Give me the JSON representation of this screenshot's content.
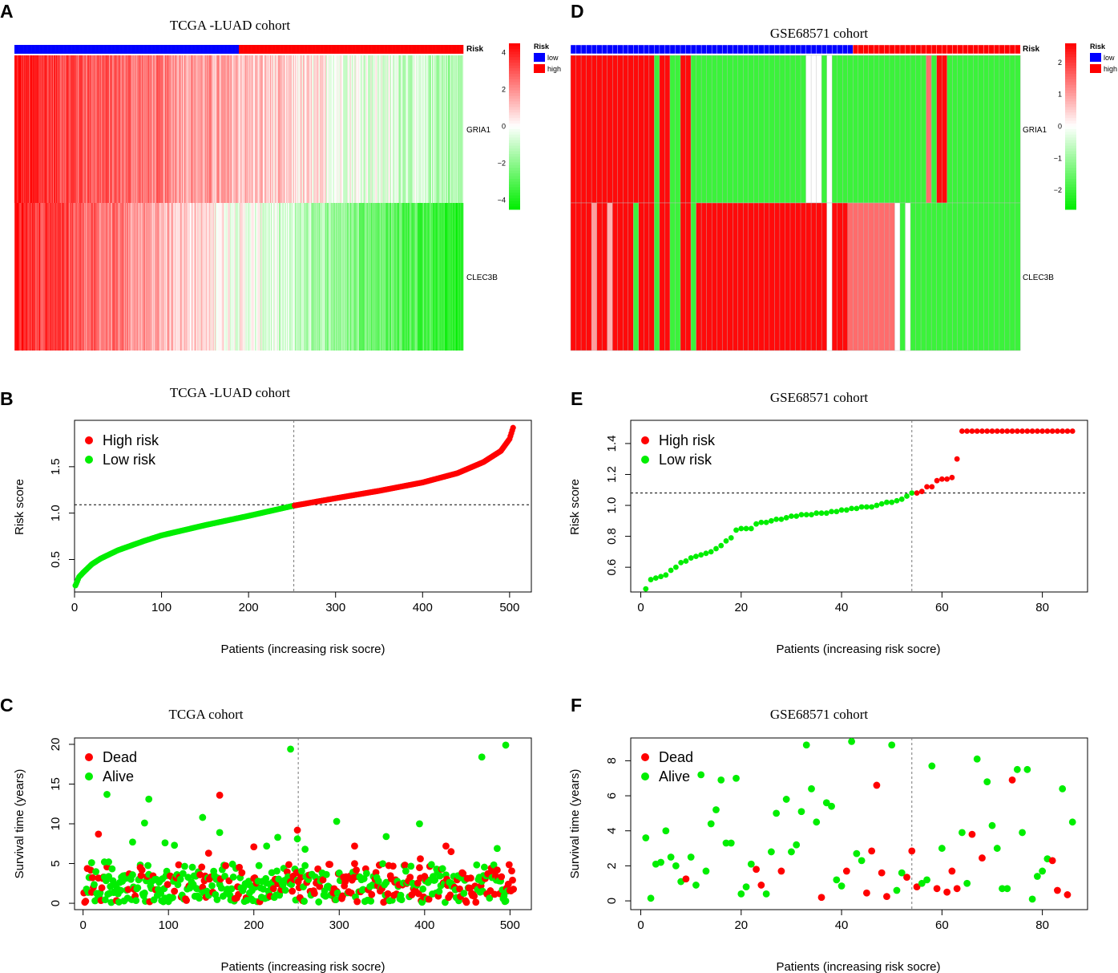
{
  "figure": {
    "colors": {
      "red": "#ff0000",
      "green": "#00ee00",
      "blue": "#0000ff",
      "white": "#ffffff",
      "black": "#000000"
    }
  },
  "chart_data": [
    {
      "panel": "A",
      "type": "heatmap",
      "title": "TCGA -LUAD cohort",
      "n_patients": 504,
      "low_count": 252,
      "annotation_label": "Risk",
      "rows": [
        "GRIA1",
        "CLEC3B"
      ],
      "legend": {
        "title": "Risk",
        "low": "low",
        "high": "high"
      },
      "colorbar": {
        "ticks": [
          "4",
          "2",
          "0",
          "−2",
          "−4"
        ],
        "range": [
          -4.5,
          4.5
        ]
      },
      "gene_trends": {
        "GRIA1": {
          "start": 4.0,
          "end": -1.5,
          "noise": 2.2
        },
        "CLEC3B": {
          "start": 4.0,
          "end": -4.0,
          "noise": 2.0
        }
      }
    },
    {
      "panel": "D",
      "type": "heatmap",
      "title": "GSE68571  cohort",
      "n_patients": 86,
      "low_count": 54,
      "annotation_label": "Risk",
      "rows": [
        "GRIA1",
        "CLEC3B"
      ],
      "legend": {
        "title": "Risk",
        "low": "low",
        "high": "high"
      },
      "colorbar": {
        "ticks": [
          "2",
          "1",
          "0",
          "−1",
          "−2"
        ],
        "range": [
          -2.6,
          2.6
        ]
      },
      "column_values": {
        "GRIA1": [
          2.5,
          2.5,
          2.5,
          2.5,
          2.5,
          2.5,
          2.5,
          2.5,
          2.5,
          2.5,
          2.5,
          2.5,
          2.5,
          2.5,
          2.5,
          2.5,
          -2.0,
          2.5,
          2.5,
          -2.0,
          -2.0,
          2.5,
          2.5,
          -2.0,
          -2.0,
          -2.0,
          -2.0,
          -2.0,
          -2.0,
          -2.0,
          -2.0,
          -2.0,
          -2.0,
          -2.0,
          -2.0,
          -2.0,
          -2.0,
          -2.0,
          -2.0,
          -2.0,
          -2.0,
          -2.0,
          -2.0,
          -2.0,
          -2.0,
          0,
          0,
          0,
          -2.0,
          0,
          -2.0,
          -2.0,
          -2.0,
          -2.0,
          -2.0,
          -2.0,
          -2.0,
          -2.0,
          -2.0,
          -2.0,
          -2.0,
          -2.0,
          -2.0,
          -2.0,
          -2.0,
          -2.0,
          -2.0,
          -2.0,
          1.5,
          -2.0,
          2.5,
          2.5,
          -2.0,
          -2.0,
          -2.0,
          -2.0,
          -2.0,
          -2.0,
          -2.0,
          -2.0,
          -2.0,
          -2.0,
          -2.0,
          -2.0,
          -2.0,
          -2.0
        ],
        "CLEC3B": [
          2.5,
          2.5,
          2.5,
          2.5,
          1.0,
          2.5,
          2.5,
          0.8,
          2.5,
          2.5,
          2.5,
          2.5,
          -2.0,
          2.5,
          2.5,
          2.5,
          -2.0,
          2.5,
          2.5,
          -2.0,
          -2.0,
          2.5,
          2.5,
          -2.0,
          2.5,
          2.5,
          2.5,
          2.5,
          2.5,
          2.5,
          2.5,
          2.5,
          2.5,
          2.5,
          2.5,
          2.5,
          2.5,
          2.5,
          2.5,
          2.5,
          2.5,
          2.5,
          2.5,
          2.5,
          2.5,
          2.5,
          2.5,
          2.5,
          2.5,
          0,
          2.5,
          2.5,
          2.5,
          1.5,
          1.5,
          1.5,
          1.5,
          1.5,
          1.5,
          1.5,
          1.5,
          1.5,
          0,
          -2.0,
          0,
          -2.0,
          -2.0,
          -2.0,
          -2.0,
          -2.0,
          -2.0,
          -2.0,
          -2.0,
          -2.0,
          -2.0,
          -2.0,
          -2.0,
          -2.0,
          -2.0,
          -2.0,
          -2.0,
          -2.0,
          -2.0,
          -2.0,
          -2.0,
          -2.0
        ]
      }
    },
    {
      "panel": "B",
      "type": "scatter",
      "title": "TCGA -LUAD cohort",
      "xlabel": "Patients (increasing risk socre)",
      "ylabel": "Risk score",
      "xlim": [
        0,
        525
      ],
      "ylim": [
        0.15,
        2.0
      ],
      "xticks": [
        0,
        100,
        200,
        300,
        400,
        500
      ],
      "yticks": [
        0.5,
        1.0,
        1.5
      ],
      "ytick_labels": [
        "0.5",
        "1.0",
        "1.5"
      ],
      "cutoff_index": 252,
      "cutoff_value": 1.09,
      "legend": [
        "High risk",
        "Low risk"
      ],
      "n": 504,
      "curve": [
        [
          1,
          0.22
        ],
        [
          2,
          0.24
        ],
        [
          5,
          0.31
        ],
        [
          10,
          0.36
        ],
        [
          20,
          0.45
        ],
        [
          30,
          0.51
        ],
        [
          50,
          0.6
        ],
        [
          80,
          0.7
        ],
        [
          100,
          0.76
        ],
        [
          150,
          0.87
        ],
        [
          200,
          0.97
        ],
        [
          252,
          1.08
        ],
        [
          300,
          1.16
        ],
        [
          350,
          1.24
        ],
        [
          400,
          1.33
        ],
        [
          440,
          1.43
        ],
        [
          470,
          1.55
        ],
        [
          490,
          1.67
        ],
        [
          500,
          1.8
        ],
        [
          504,
          1.92
        ]
      ]
    },
    {
      "panel": "E",
      "type": "scatter",
      "title": "GSE68571  cohort",
      "xlabel": "Patients (increasing risk socre)",
      "ylabel": "Risk score",
      "xlim": [
        -2,
        89
      ],
      "ylim": [
        0.44,
        1.55
      ],
      "xticks": [
        0,
        20,
        40,
        60,
        80
      ],
      "yticks": [
        0.6,
        0.8,
        1.0,
        1.2,
        1.4
      ],
      "ytick_labels": [
        "0.6",
        "0.8",
        "1.0",
        "1.2",
        "1.4"
      ],
      "cutoff_index": 54,
      "cutoff_value": 1.08,
      "legend": [
        "High risk",
        "Low risk"
      ],
      "values": [
        0.46,
        0.52,
        0.53,
        0.54,
        0.55,
        0.58,
        0.6,
        0.63,
        0.64,
        0.66,
        0.67,
        0.68,
        0.69,
        0.7,
        0.72,
        0.74,
        0.77,
        0.79,
        0.84,
        0.85,
        0.85,
        0.85,
        0.88,
        0.89,
        0.89,
        0.9,
        0.91,
        0.91,
        0.92,
        0.93,
        0.93,
        0.94,
        0.94,
        0.94,
        0.95,
        0.95,
        0.95,
        0.96,
        0.96,
        0.97,
        0.97,
        0.98,
        0.98,
        0.99,
        0.99,
        0.99,
        1.0,
        1.01,
        1.02,
        1.02,
        1.03,
        1.04,
        1.06,
        1.08,
        1.08,
        1.09,
        1.12,
        1.12,
        1.16,
        1.17,
        1.17,
        1.18,
        1.3,
        1.48,
        1.48,
        1.48,
        1.48,
        1.48,
        1.48,
        1.48,
        1.48,
        1.48,
        1.48,
        1.48,
        1.48,
        1.48,
        1.48,
        1.48,
        1.48,
        1.48,
        1.48,
        1.48,
        1.48,
        1.48,
        1.48,
        1.48
      ]
    },
    {
      "panel": "C",
      "type": "scatter",
      "title": "TCGA  cohort",
      "xlabel": "Patients (increasing risk socre)",
      "ylabel": "Survival time (years)",
      "xlim": [
        -10,
        525
      ],
      "ylim": [
        -0.8,
        20.8
      ],
      "xticks": [
        0,
        100,
        200,
        300,
        400,
        500
      ],
      "yticks": [
        0,
        5,
        10,
        15,
        20
      ],
      "cutoff_index": 252,
      "legend": [
        "Dead",
        "Alive"
      ],
      "n": 504,
      "highlights": [
        {
          "x": 18,
          "y": 8.7,
          "status": "dead"
        },
        {
          "x": 28,
          "y": 13.7,
          "status": "alive"
        },
        {
          "x": 67,
          "y": 4.5,
          "status": "dead"
        },
        {
          "x": 72,
          "y": 10.1,
          "status": "alive"
        },
        {
          "x": 77,
          "y": 13.1,
          "status": "alive"
        },
        {
          "x": 140,
          "y": 10.8,
          "status": "alive"
        },
        {
          "x": 147,
          "y": 6.3,
          "status": "dead"
        },
        {
          "x": 160,
          "y": 13.6,
          "status": "dead"
        },
        {
          "x": 160,
          "y": 8.9,
          "status": "alive"
        },
        {
          "x": 200,
          "y": 7.1,
          "status": "dead"
        },
        {
          "x": 215,
          "y": 7.2,
          "status": "alive"
        },
        {
          "x": 228,
          "y": 8.3,
          "status": "alive"
        },
        {
          "x": 243,
          "y": 19.4,
          "status": "alive"
        },
        {
          "x": 251,
          "y": 9.2,
          "status": "dead"
        },
        {
          "x": 251,
          "y": 8.1,
          "status": "alive"
        },
        {
          "x": 260,
          "y": 6.8,
          "status": "alive"
        },
        {
          "x": 288,
          "y": 4.9,
          "status": "dead"
        },
        {
          "x": 297,
          "y": 10.3,
          "status": "alive"
        },
        {
          "x": 318,
          "y": 7.2,
          "status": "dead"
        },
        {
          "x": 355,
          "y": 8.4,
          "status": "alive"
        },
        {
          "x": 395,
          "y": 5.6,
          "status": "dead"
        },
        {
          "x": 394,
          "y": 10.0,
          "status": "alive"
        },
        {
          "x": 425,
          "y": 7.2,
          "status": "dead"
        },
        {
          "x": 431,
          "y": 6.5,
          "status": "dead"
        },
        {
          "x": 467,
          "y": 18.4,
          "status": "alive"
        },
        {
          "x": 485,
          "y": 6.9,
          "status": "alive"
        },
        {
          "x": 495,
          "y": 19.9,
          "status": "alive"
        },
        {
          "x": 96,
          "y": 7.6,
          "status": "alive"
        },
        {
          "x": 107,
          "y": 7.3,
          "status": "alive"
        },
        {
          "x": 58,
          "y": 7.7,
          "status": "alive"
        },
        {
          "x": 25,
          "y": 5.2,
          "status": "alive"
        },
        {
          "x": 30,
          "y": 5.2,
          "status": "alive"
        },
        {
          "x": 10,
          "y": 5.1,
          "status": "alive"
        }
      ]
    },
    {
      "panel": "F",
      "type": "scatter",
      "title": "GSE68571  cohort",
      "xlabel": "Patients (increasing risk socre)",
      "ylabel": "Survival time (years)",
      "xlim": [
        -2,
        89
      ],
      "ylim": [
        -0.5,
        9.3
      ],
      "xticks": [
        0,
        20,
        40,
        60,
        80
      ],
      "yticks": [
        0,
        2,
        4,
        6,
        8
      ],
      "cutoff_index": 54,
      "legend": [
        "Dead",
        "Alive"
      ],
      "points": [
        {
          "x": 1,
          "y": 3.6,
          "s": "a"
        },
        {
          "x": 2,
          "y": 0.15,
          "s": "a"
        },
        {
          "x": 3,
          "y": 2.1,
          "s": "a"
        },
        {
          "x": 4,
          "y": 2.2,
          "s": "a"
        },
        {
          "x": 5,
          "y": 4.0,
          "s": "a"
        },
        {
          "x": 6,
          "y": 2.5,
          "s": "a"
        },
        {
          "x": 7,
          "y": 2.0,
          "s": "a"
        },
        {
          "x": 8,
          "y": 1.1,
          "s": "a"
        },
        {
          "x": 9,
          "y": 1.25,
          "s": "d"
        },
        {
          "x": 10,
          "y": 2.5,
          "s": "a"
        },
        {
          "x": 11,
          "y": 0.9,
          "s": "a"
        },
        {
          "x": 12,
          "y": 7.2,
          "s": "a"
        },
        {
          "x": 13,
          "y": 1.7,
          "s": "a"
        },
        {
          "x": 14,
          "y": 4.4,
          "s": "a"
        },
        {
          "x": 15,
          "y": 5.2,
          "s": "a"
        },
        {
          "x": 16,
          "y": 6.9,
          "s": "a"
        },
        {
          "x": 17,
          "y": 3.3,
          "s": "a"
        },
        {
          "x": 18,
          "y": 3.3,
          "s": "a"
        },
        {
          "x": 19,
          "y": 7.0,
          "s": "a"
        },
        {
          "x": 20,
          "y": 0.4,
          "s": "a"
        },
        {
          "x": 21,
          "y": 0.8,
          "s": "a"
        },
        {
          "x": 22,
          "y": 2.1,
          "s": "a"
        },
        {
          "x": 23,
          "y": 1.8,
          "s": "d"
        },
        {
          "x": 24,
          "y": 0.9,
          "s": "d"
        },
        {
          "x": 25,
          "y": 0.4,
          "s": "a"
        },
        {
          "x": 26,
          "y": 2.8,
          "s": "a"
        },
        {
          "x": 27,
          "y": 5.0,
          "s": "a"
        },
        {
          "x": 28,
          "y": 1.7,
          "s": "d"
        },
        {
          "x": 29,
          "y": 5.8,
          "s": "a"
        },
        {
          "x": 30,
          "y": 2.8,
          "s": "a"
        },
        {
          "x": 31,
          "y": 3.2,
          "s": "a"
        },
        {
          "x": 32,
          "y": 5.1,
          "s": "a"
        },
        {
          "x": 33,
          "y": 8.9,
          "s": "a"
        },
        {
          "x": 34,
          "y": 6.4,
          "s": "a"
        },
        {
          "x": 35,
          "y": 4.5,
          "s": "a"
        },
        {
          "x": 36,
          "y": 0.2,
          "s": "d"
        },
        {
          "x": 37,
          "y": 5.6,
          "s": "a"
        },
        {
          "x": 38,
          "y": 5.4,
          "s": "a"
        },
        {
          "x": 39,
          "y": 1.2,
          "s": "a"
        },
        {
          "x": 40,
          "y": 0.85,
          "s": "a"
        },
        {
          "x": 41,
          "y": 1.7,
          "s": "d"
        },
        {
          "x": 42,
          "y": 9.1,
          "s": "a"
        },
        {
          "x": 43,
          "y": 2.7,
          "s": "a"
        },
        {
          "x": 44,
          "y": 2.3,
          "s": "a"
        },
        {
          "x": 45,
          "y": 0.45,
          "s": "d"
        },
        {
          "x": 46,
          "y": 2.85,
          "s": "d"
        },
        {
          "x": 47,
          "y": 6.6,
          "s": "d"
        },
        {
          "x": 48,
          "y": 1.6,
          "s": "d"
        },
        {
          "x": 49,
          "y": 0.25,
          "s": "d"
        },
        {
          "x": 50,
          "y": 8.9,
          "s": "a"
        },
        {
          "x": 51,
          "y": 0.6,
          "s": "a"
        },
        {
          "x": 52,
          "y": 1.6,
          "s": "a"
        },
        {
          "x": 53,
          "y": 1.35,
          "s": "d"
        },
        {
          "x": 54,
          "y": 2.85,
          "s": "d"
        },
        {
          "x": 55,
          "y": 0.8,
          "s": "d"
        },
        {
          "x": 56,
          "y": 1.0,
          "s": "a"
        },
        {
          "x": 57,
          "y": 1.2,
          "s": "a"
        },
        {
          "x": 58,
          "y": 7.7,
          "s": "a"
        },
        {
          "x": 59,
          "y": 0.7,
          "s": "d"
        },
        {
          "x": 60,
          "y": 3.0,
          "s": "a"
        },
        {
          "x": 61,
          "y": 0.5,
          "s": "d"
        },
        {
          "x": 62,
          "y": 1.7,
          "s": "d"
        },
        {
          "x": 63,
          "y": 0.7,
          "s": "d"
        },
        {
          "x": 64,
          "y": 3.9,
          "s": "a"
        },
        {
          "x": 65,
          "y": 1.0,
          "s": "a"
        },
        {
          "x": 66,
          "y": 3.8,
          "s": "d"
        },
        {
          "x": 67,
          "y": 8.1,
          "s": "a"
        },
        {
          "x": 68,
          "y": 2.45,
          "s": "d"
        },
        {
          "x": 69,
          "y": 6.8,
          "s": "a"
        },
        {
          "x": 70,
          "y": 4.3,
          "s": "a"
        },
        {
          "x": 71,
          "y": 3.0,
          "s": "a"
        },
        {
          "x": 72,
          "y": 0.7,
          "s": "a"
        },
        {
          "x": 73,
          "y": 0.7,
          "s": "a"
        },
        {
          "x": 74,
          "y": 6.9,
          "s": "d"
        },
        {
          "x": 75,
          "y": 7.5,
          "s": "a"
        },
        {
          "x": 76,
          "y": 3.9,
          "s": "a"
        },
        {
          "x": 77,
          "y": 7.5,
          "s": "a"
        },
        {
          "x": 78,
          "y": 0.1,
          "s": "a"
        },
        {
          "x": 79,
          "y": 1.4,
          "s": "a"
        },
        {
          "x": 80,
          "y": 1.7,
          "s": "a"
        },
        {
          "x": 81,
          "y": 2.4,
          "s": "a"
        },
        {
          "x": 82,
          "y": 2.3,
          "s": "d"
        },
        {
          "x": 83,
          "y": 0.6,
          "s": "d"
        },
        {
          "x": 84,
          "y": 6.4,
          "s": "a"
        },
        {
          "x": 85,
          "y": 0.35,
          "s": "d"
        },
        {
          "x": 86,
          "y": 4.5,
          "s": "a"
        }
      ]
    }
  ],
  "panels": {
    "A": {
      "letter": "A"
    },
    "B": {
      "letter": "B"
    },
    "C": {
      "letter": "C"
    },
    "D": {
      "letter": "D"
    },
    "E": {
      "letter": "E"
    },
    "F": {
      "letter": "F"
    }
  }
}
